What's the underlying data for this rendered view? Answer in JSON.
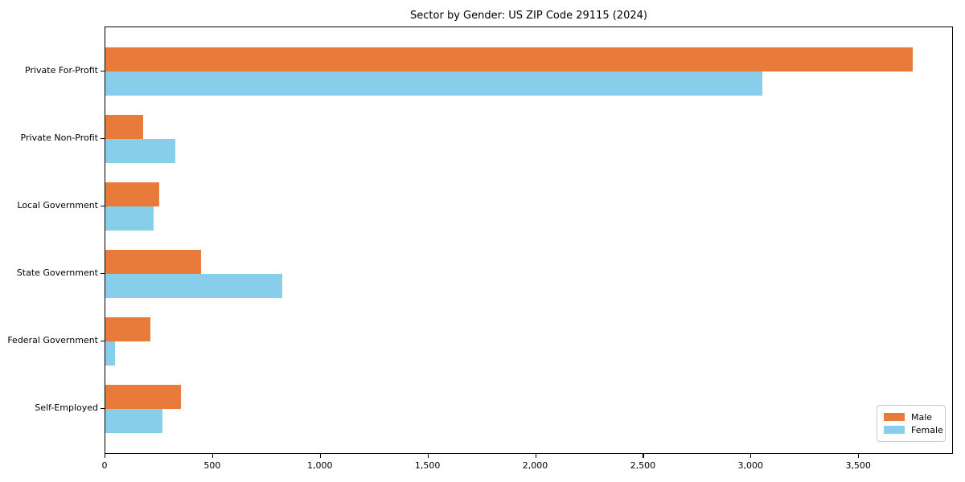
{
  "title": "Sector by Gender: US ZIP Code 29115 (2024)",
  "chart_data": {
    "type": "bar",
    "orientation": "horizontal",
    "title": "Sector by Gender: US ZIP Code 29115 (2024)",
    "categories": [
      "Private For-Profit",
      "Private Non-Profit",
      "Local Government",
      "State Government",
      "Federal Government",
      "Self-Employed"
    ],
    "series": [
      {
        "name": "Male",
        "color": "#e87a3a",
        "values": [
          3750,
          175,
          250,
          445,
          210,
          350
        ]
      },
      {
        "name": "Female",
        "color": "#87ceeb",
        "values": [
          3050,
          325,
          225,
          820,
          45,
          265
        ]
      }
    ],
    "xlabel": "",
    "ylabel": "",
    "xlim": [
      0,
      3940
    ],
    "x_ticks": [
      {
        "value": 0,
        "label": "0"
      },
      {
        "value": 500,
        "label": "500"
      },
      {
        "value": 1000,
        "label": "1,000"
      },
      {
        "value": 1500,
        "label": "1,500"
      },
      {
        "value": 2000,
        "label": "2,000"
      },
      {
        "value": 2500,
        "label": "2,500"
      },
      {
        "value": 3000,
        "label": "3,000"
      },
      {
        "value": 3500,
        "label": "3,500"
      }
    ],
    "grid": false,
    "legend": {
      "position": "lower right",
      "entries": [
        "Male",
        "Female"
      ]
    }
  },
  "colors": {
    "spine": "#000000",
    "background": "#ffffff",
    "legend_border": "#c8c8c8"
  }
}
